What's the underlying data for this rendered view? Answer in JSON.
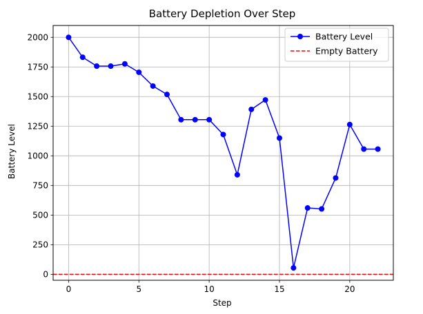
{
  "chart_data": {
    "type": "line",
    "title": "Battery Depletion Over Step",
    "xlabel": "Step",
    "ylabel": "Battery Level",
    "xlim": [
      -1.1,
      23.1
    ],
    "ylim": [
      -50,
      2100
    ],
    "xticks": [
      0,
      5,
      10,
      15,
      20
    ],
    "yticks": [
      0,
      250,
      500,
      750,
      1000,
      1250,
      1500,
      1750,
      2000
    ],
    "grid": true,
    "legend_position": "top-right",
    "x": [
      0,
      1,
      2,
      3,
      4,
      5,
      6,
      7,
      8,
      9,
      10,
      11,
      12,
      13,
      14,
      15,
      16,
      17,
      18,
      19,
      20,
      21,
      22
    ],
    "series": [
      {
        "name": "Battery Level",
        "color": "#0000ff",
        "style": "solid",
        "marker": "circle",
        "values": [
          2000,
          1832,
          1757,
          1757,
          1776,
          1705,
          1589,
          1518,
          1305,
          1305,
          1305,
          1180,
          840,
          1392,
          1472,
          1150,
          54,
          560,
          552,
          813,
          1264,
          1057,
          1057
        ]
      },
      {
        "name": "Empty Battery",
        "color": "#ff0000",
        "style": "dashed",
        "marker": "none",
        "hline": 0
      }
    ]
  }
}
